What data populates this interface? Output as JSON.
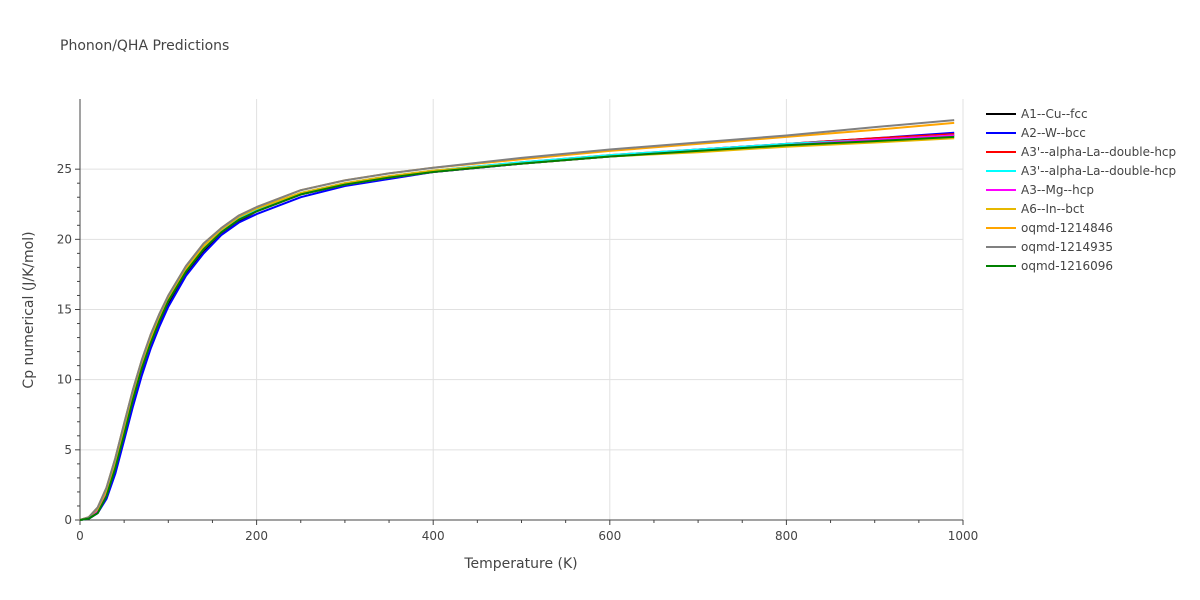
{
  "chart_data": {
    "type": "line",
    "title": "Phonon/QHA Predictions",
    "xlabel": "Temperature (K)",
    "ylabel": "Cp numerical (J/K/mol)",
    "xlim": [
      0,
      1000
    ],
    "ylim": [
      0,
      30
    ],
    "xticks": [
      0,
      200,
      400,
      600,
      800,
      1000
    ],
    "yticks": [
      0,
      5,
      10,
      15,
      20,
      25
    ],
    "xtick_labels": [
      "0",
      "200",
      "400",
      "600",
      "800",
      "1000"
    ],
    "ytick_labels": [
      "0",
      "5",
      "10",
      "15",
      "20",
      "25"
    ],
    "grid": true,
    "legend_position": "right",
    "x": [
      0,
      10,
      20,
      30,
      40,
      50,
      60,
      70,
      80,
      90,
      100,
      120,
      140,
      160,
      180,
      200,
      250,
      300,
      350,
      400,
      500,
      600,
      700,
      800,
      900,
      990
    ],
    "series": [
      {
        "name": "A1--Cu--fcc",
        "color": "#000000",
        "values": [
          0,
          0.1,
          0.5,
          1.6,
          3.5,
          5.9,
          8.3,
          10.5,
          12.4,
          14.0,
          15.4,
          17.6,
          19.2,
          20.4,
          21.3,
          22.0,
          23.2,
          23.9,
          24.4,
          24.8,
          25.4,
          25.9,
          26.3,
          26.7,
          27.0,
          27.4
        ]
      },
      {
        "name": "A2--W--bcc",
        "color": "#0000ff",
        "values": [
          0,
          0.1,
          0.5,
          1.5,
          3.3,
          5.7,
          8.1,
          10.3,
          12.2,
          13.8,
          15.2,
          17.4,
          19.0,
          20.3,
          21.2,
          21.8,
          23.0,
          23.8,
          24.3,
          24.8,
          25.4,
          25.9,
          26.4,
          26.8,
          27.2,
          27.6
        ]
      },
      {
        "name": "A3'--alpha-La--double-hcp",
        "color": "#ff0000",
        "values": [
          0,
          0.15,
          0.7,
          2.0,
          4.0,
          6.5,
          8.9,
          11.0,
          12.8,
          14.4,
          15.7,
          17.8,
          19.4,
          20.6,
          21.5,
          22.1,
          23.3,
          24.0,
          24.5,
          24.9,
          25.5,
          26.0,
          26.4,
          26.8,
          27.2,
          27.5
        ]
      },
      {
        "name": "A3'--alpha-La--double-hcp",
        "color": "#00ffff",
        "values": [
          0,
          0.15,
          0.7,
          2.0,
          4.0,
          6.5,
          8.9,
          11.0,
          12.8,
          14.4,
          15.7,
          17.8,
          19.4,
          20.6,
          21.5,
          22.1,
          23.3,
          24.0,
          24.5,
          24.9,
          25.5,
          26.0,
          26.4,
          26.8,
          27.1,
          27.4
        ]
      },
      {
        "name": "A3--Mg--hcp",
        "color": "#ff00ff",
        "values": [
          0,
          0.12,
          0.6,
          1.8,
          3.8,
          6.2,
          8.6,
          10.8,
          12.6,
          14.2,
          15.6,
          17.7,
          19.3,
          20.5,
          21.4,
          22.0,
          23.2,
          23.9,
          24.4,
          24.8,
          25.4,
          25.9,
          26.3,
          26.7,
          27.1,
          27.4
        ]
      },
      {
        "name": "A6--In--bct",
        "color": "#e6b800",
        "values": [
          0,
          0.2,
          0.8,
          2.1,
          4.1,
          6.6,
          9.0,
          11.1,
          12.9,
          14.5,
          15.8,
          17.9,
          19.5,
          20.7,
          21.6,
          22.2,
          23.3,
          24.0,
          24.5,
          24.9,
          25.4,
          25.9,
          26.2,
          26.6,
          26.9,
          27.2
        ]
      },
      {
        "name": "oqmd-1214846",
        "color": "#ffa500",
        "values": [
          0,
          0.2,
          0.9,
          2.3,
          4.4,
          6.9,
          9.3,
          11.4,
          13.2,
          14.7,
          16.0,
          18.1,
          19.7,
          20.8,
          21.7,
          22.3,
          23.5,
          24.2,
          24.7,
          25.1,
          25.7,
          26.3,
          26.8,
          27.3,
          27.8,
          28.3
        ]
      },
      {
        "name": "oqmd-1214935",
        "color": "#808080",
        "values": [
          0,
          0.2,
          0.9,
          2.3,
          4.4,
          6.9,
          9.3,
          11.4,
          13.2,
          14.7,
          16.0,
          18.1,
          19.7,
          20.8,
          21.7,
          22.3,
          23.5,
          24.2,
          24.7,
          25.1,
          25.8,
          26.4,
          26.9,
          27.4,
          28.0,
          28.5
        ]
      },
      {
        "name": "oqmd-1216096",
        "color": "#008000",
        "values": [
          0,
          0.1,
          0.5,
          1.7,
          3.7,
          6.1,
          8.6,
          10.8,
          12.6,
          14.2,
          15.6,
          17.7,
          19.3,
          20.5,
          21.4,
          22.0,
          23.2,
          23.9,
          24.4,
          24.8,
          25.4,
          25.9,
          26.3,
          26.7,
          27.0,
          27.3
        ]
      }
    ]
  }
}
